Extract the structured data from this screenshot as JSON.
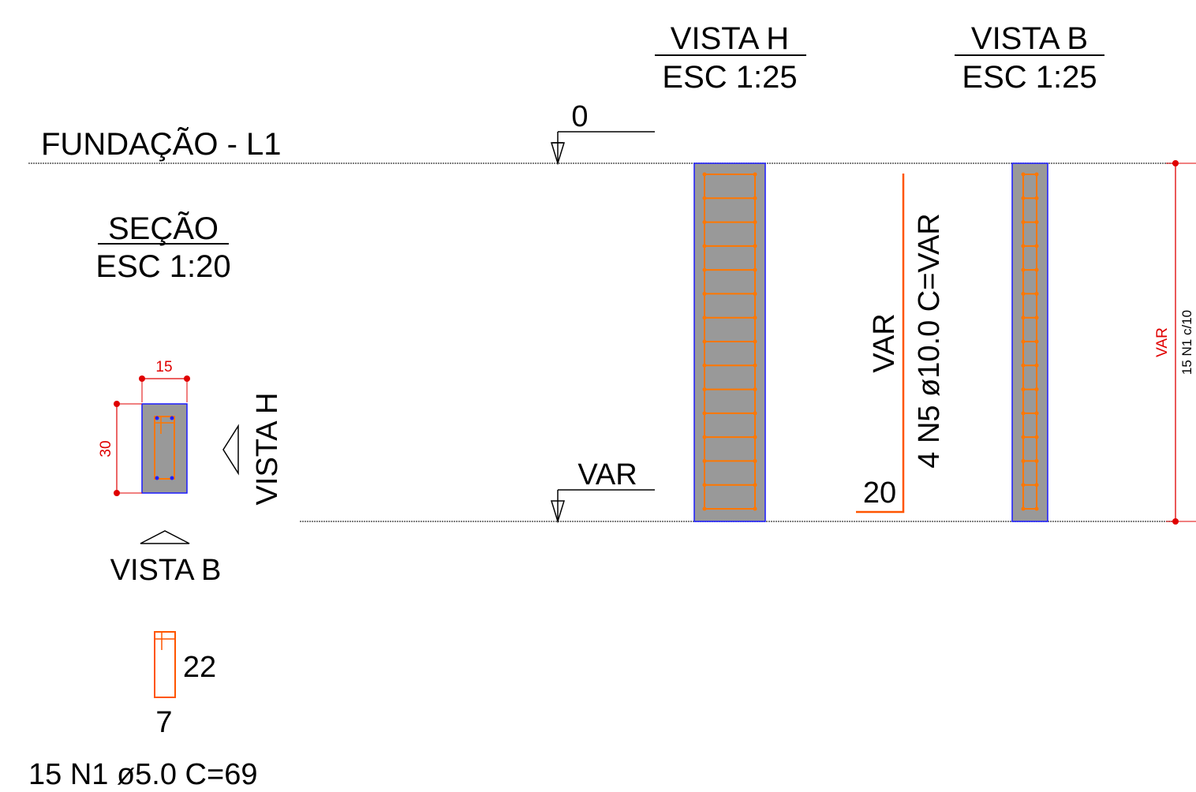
{
  "title": "FUNDAÇÃO - L1",
  "views": {
    "vista_h": {
      "title": "VISTA H",
      "scale": "ESC 1:25"
    },
    "vista_b": {
      "title": "VISTA B",
      "scale": "ESC 1:25"
    },
    "secao": {
      "title": "SEÇÃO",
      "scale": "ESC 1:20"
    }
  },
  "levels": {
    "top": "0",
    "bottom": "VAR"
  },
  "section": {
    "width_label": "15",
    "height_label": "30",
    "view_h_marker": "VISTA H",
    "view_b_marker": "VISTA B"
  },
  "stirrup": {
    "height_label": "22",
    "width_label": "7",
    "callout": "15 N1 ø5.0  C=69"
  },
  "longitudinal_bar": {
    "length_label": "VAR",
    "callout": "4 N5 ø10.0  C=VAR",
    "hook_label": "20"
  },
  "right_dimension": {
    "length_label": "VAR",
    "spacing_callout": "15 N1 c/10"
  },
  "colors": {
    "concrete": "#999999",
    "outline": "#1a1aff",
    "rebar": "#ff7700",
    "dimension": "#e00000",
    "bar_dot": "#2222ff"
  }
}
